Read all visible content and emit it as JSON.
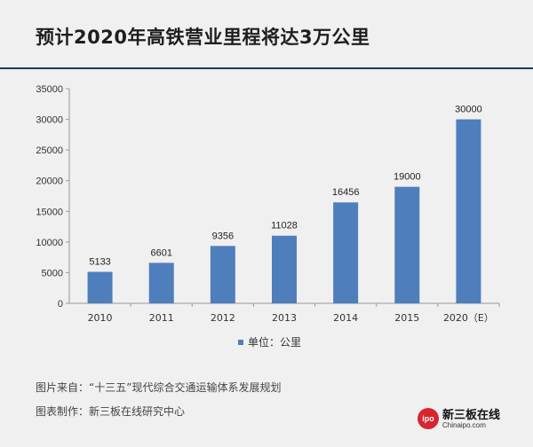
{
  "title": "预计2020年高铁营业里程将达3万公里",
  "chart_data": {
    "type": "bar",
    "categories": [
      "2010",
      "2011",
      "2012",
      "2013",
      "2014",
      "2015",
      "2020（E）"
    ],
    "values": [
      5133,
      6601,
      9356,
      11028,
      16456,
      19000,
      30000
    ],
    "ylim": [
      0,
      35000
    ],
    "yticks": [
      0,
      5000,
      10000,
      15000,
      20000,
      25000,
      30000,
      35000
    ],
    "series_name": "单位：公里",
    "bar_color": "#4f7ebc",
    "legend_position": "bottom",
    "xlabel": "",
    "ylabel": ""
  },
  "footer": {
    "source_label": "图片来自：",
    "source_value": "“十三五”现代综合交通运输体系发展规划",
    "maker_label": "图表制作：",
    "maker_value": "新三板在线研究中心"
  },
  "logo": {
    "badge": "ipo",
    "name": "新三板在线",
    "url": "Chinaipo.com"
  }
}
